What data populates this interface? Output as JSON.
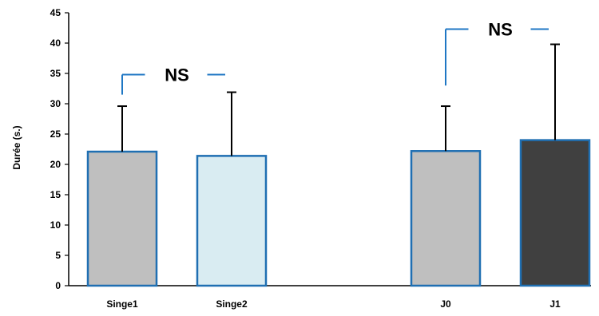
{
  "chart_data": {
    "type": "bar",
    "ylabel": "Durée (s.)",
    "ylim": [
      0,
      45
    ],
    "yticks": [
      0,
      5,
      10,
      15,
      20,
      25,
      30,
      35,
      40,
      45
    ],
    "categories": [
      "Singe1",
      "Singe2",
      "J0",
      "J1"
    ],
    "values": [
      22.1,
      21.4,
      22.2,
      24.0
    ],
    "error_upper": [
      29.6,
      31.9,
      29.6,
      39.8
    ],
    "bar_colors": [
      "#bfbfbf",
      "#d9ecf2",
      "#bfbfbf",
      "#404040"
    ],
    "bar_edge_color": "#1f6fb2",
    "bracket_color": "#1f77c4",
    "annotations": [
      {
        "text": "NS",
        "between": [
          "Singe1",
          "Singe2"
        ],
        "level": 34.8,
        "start": 31.5
      },
      {
        "text": "NS",
        "between": [
          "J0",
          "J1"
        ],
        "level": 42.3,
        "start": 33.0
      }
    ],
    "grid": false,
    "legend": "none"
  }
}
